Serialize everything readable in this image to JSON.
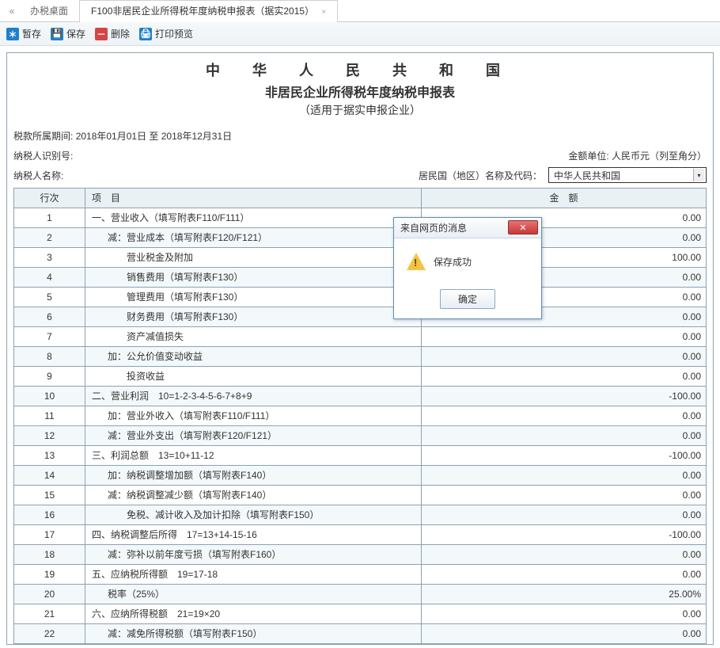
{
  "tabs": {
    "home": "办税桌面",
    "form": "F100非居民企业所得税年度纳税申报表（据实2015）",
    "close_glyph": "×",
    "prev_glyph": "«"
  },
  "toolbar": {
    "stash": "暂存",
    "save": "保存",
    "delete": "删除",
    "print": "打印预览"
  },
  "header": {
    "country": "中 华 人 民 共 和 国",
    "title": "非居民企业所得税年度纳税申报表",
    "subtitle": "（适用于据实申报企业）"
  },
  "info": {
    "period_label": "税款所属期间:",
    "period_value": "2018年01月01日 至 2018年12月31日",
    "taxpayer_id_label": "纳税人识别号:",
    "currency_label": "金额单位: 人民币元（列至角分）",
    "taxpayer_name_label": "纳税人名称:",
    "resident_label": "居民国（地区）名称及代码：",
    "resident_value": "中华人民共和国"
  },
  "table": {
    "head_num": "行次",
    "head_item": "项　目",
    "head_amount": "金　额",
    "rows": [
      {
        "n": "1",
        "indent": 0,
        "item": "一、营业收入（填写附表F110/F111）",
        "amt": "0.00"
      },
      {
        "n": "2",
        "indent": 1,
        "item": "减：营业成本（填写附表F120/F121）",
        "amt": "0.00"
      },
      {
        "n": "3",
        "indent": 2,
        "item": "营业税金及附加",
        "amt": "100.00"
      },
      {
        "n": "4",
        "indent": 2,
        "item": "销售费用（填写附表F130）",
        "amt": "0.00"
      },
      {
        "n": "5",
        "indent": 2,
        "item": "管理费用（填写附表F130）",
        "amt": "0.00"
      },
      {
        "n": "6",
        "indent": 2,
        "item": "财务费用（填写附表F130）",
        "amt": "0.00"
      },
      {
        "n": "7",
        "indent": 2,
        "item": "资产减值损失",
        "amt": "0.00"
      },
      {
        "n": "8",
        "indent": 1,
        "item": "加：公允价值变动收益",
        "amt": "0.00"
      },
      {
        "n": "9",
        "indent": 2,
        "item": "投资收益",
        "amt": "0.00"
      },
      {
        "n": "10",
        "indent": 0,
        "item": "二、营业利润　10=1-2-3-4-5-6-7+8+9",
        "amt": "-100.00"
      },
      {
        "n": "11",
        "indent": 1,
        "item": "加：营业外收入（填写附表F110/F111）",
        "amt": "0.00"
      },
      {
        "n": "12",
        "indent": 1,
        "item": "减：营业外支出（填写附表F120/F121）",
        "amt": "0.00"
      },
      {
        "n": "13",
        "indent": 0,
        "item": "三、利润总额　13=10+11-12",
        "amt": "-100.00"
      },
      {
        "n": "14",
        "indent": 1,
        "item": "加：纳税调整增加额（填写附表F140）",
        "amt": "0.00"
      },
      {
        "n": "15",
        "indent": 1,
        "item": "减：纳税调整减少额（填写附表F140）",
        "amt": "0.00"
      },
      {
        "n": "16",
        "indent": 2,
        "item": "免税、减计收入及加计扣除（填写附表F150）",
        "amt": "0.00"
      },
      {
        "n": "17",
        "indent": 0,
        "item": "四、纳税调整后所得　17=13+14-15-16",
        "amt": "-100.00"
      },
      {
        "n": "18",
        "indent": 1,
        "item": "减：弥补以前年度亏损（填写附表F160）",
        "amt": "0.00"
      },
      {
        "n": "19",
        "indent": 0,
        "item": "五、应纳税所得额　19=17-18",
        "amt": "0.00"
      },
      {
        "n": "20",
        "indent": 1,
        "item": "税率（25%）",
        "amt": "25.00%"
      },
      {
        "n": "21",
        "indent": 0,
        "item": "六、应纳所得税额　21=19×20",
        "amt": "0.00"
      },
      {
        "n": "22",
        "indent": 1,
        "item": "减：减免所得税额（填写附表F150）",
        "amt": "0.00"
      }
    ]
  },
  "dialog": {
    "title": "来自网页的消息",
    "message": "保存成功",
    "ok": "确定"
  },
  "colors": {
    "border": "#8fa1b2",
    "header_bg": "#e9f1f5",
    "zebra_bg": "#f3f8fb",
    "toolbar_bg": "#eef3f7"
  }
}
